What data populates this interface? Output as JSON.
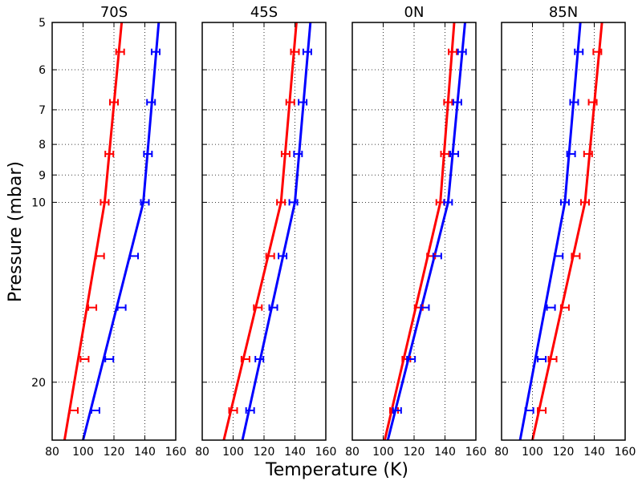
{
  "chart_data": {
    "type": "line",
    "xlabel": "Temperature (K)",
    "ylabel": "Pressure (mbar)",
    "y_scale": "log",
    "y_inverted": true,
    "ylim": [
      5,
      25
    ],
    "xlim": [
      80,
      160
    ],
    "x_ticks": [
      "80",
      "100",
      "120",
      "140",
      "160"
    ],
    "y_ticks": [
      {
        "value": 5,
        "label": "5"
      },
      {
        "value": 6,
        "label": "6"
      },
      {
        "value": 7,
        "label": "7"
      },
      {
        "value": 8,
        "label": "8"
      },
      {
        "value": 9,
        "label": "9"
      },
      {
        "value": 10,
        "label": "10"
      },
      {
        "value": 20,
        "label": "20"
      }
    ],
    "grid": true,
    "series_colors": {
      "red": "#ff0000",
      "blue": "#0000ff"
    },
    "pressures": [
      5.6,
      6.8,
      8.3,
      10.0,
      12.3,
      15.0,
      18.3,
      22.3
    ],
    "panels": [
      {
        "title": "70S",
        "red_line": {
          "p": [
            5,
            10,
            25
          ],
          "t": [
            125,
            114,
            88
          ]
        },
        "blue_line": {
          "p": [
            5,
            10,
            25
          ],
          "t": [
            149,
            139,
            100
          ]
        },
        "red_points": [
          124,
          120,
          117,
          114,
          111,
          106,
          101,
          94
        ],
        "blue_points": [
          147,
          144,
          142,
          140,
          133,
          125,
          117,
          108
        ]
      },
      {
        "title": "45S",
        "red_line": {
          "p": [
            5,
            10,
            25
          ],
          "t": [
            141,
            131,
            94
          ]
        },
        "blue_line": {
          "p": [
            5,
            10,
            25
          ],
          "t": [
            150,
            140,
            106
          ]
        },
        "red_points": [
          140,
          137,
          134,
          131,
          124,
          116,
          108,
          100
        ],
        "blue_points": [
          148,
          145,
          142,
          139,
          132,
          126,
          117,
          111
        ]
      },
      {
        "title": "0N",
        "red_line": {
          "p": [
            5,
            10,
            25
          ],
          "t": [
            146,
            137,
            101
          ]
        },
        "blue_line": {
          "p": [
            5,
            10,
            25
          ],
          "t": [
            153,
            142,
            103
          ]
        },
        "red_points": [
          145,
          142,
          140,
          137,
          131,
          123,
          115,
          107
        ],
        "blue_points": [
          151,
          148,
          146,
          142,
          135,
          127,
          118,
          109
        ]
      },
      {
        "title": "85N",
        "red_line": {
          "p": [
            5,
            10,
            25
          ],
          "t": [
            145,
            134,
            100
          ]
        },
        "blue_line": {
          "p": [
            5,
            10,
            25
          ],
          "t": [
            131,
            121,
            92
          ]
        },
        "red_points": [
          142,
          139,
          136,
          134,
          128,
          121,
          113,
          106
        ],
        "blue_points": [
          130,
          127,
          125,
          121,
          117,
          112,
          106,
          98
        ]
      }
    ]
  }
}
